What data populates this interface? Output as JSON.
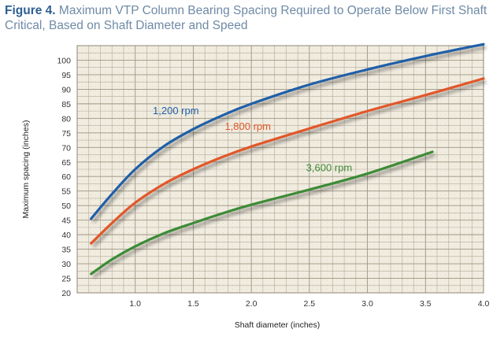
{
  "figure": {
    "label": "Figure 4.",
    "title": "Maximum VTP Column Bearing Spacing Required to Operate Below First Shaft Critical, Based on Shaft Diameter and Speed"
  },
  "chart_data": {
    "type": "line",
    "xlabel": "Shaft diameter (inches)",
    "ylabel": "Maximum spacing (inches)",
    "xlim": [
      0.5,
      4.0
    ],
    "ylim": [
      20,
      105
    ],
    "x_ticks": [
      "1.0",
      "1.5",
      "2.0",
      "2.5",
      "3.0",
      "3.5",
      "4.0"
    ],
    "y_ticks": [
      "20",
      "25",
      "30",
      "35",
      "40",
      "45",
      "50",
      "55",
      "60",
      "65",
      "70",
      "75",
      "80",
      "85",
      "90",
      "95",
      "100"
    ],
    "grid": true,
    "legend": "inline labels",
    "series": [
      {
        "name": "1,200 rpm",
        "color": "#1f5fa8",
        "points": [
          [
            0.62,
            45.5
          ],
          [
            0.8,
            54
          ],
          [
            1.0,
            62.5
          ],
          [
            1.25,
            70.5
          ],
          [
            1.5,
            76.3
          ],
          [
            1.75,
            81
          ],
          [
            2.0,
            85
          ],
          [
            2.5,
            91.6
          ],
          [
            3.0,
            96.8
          ],
          [
            3.5,
            101.4
          ],
          [
            4.0,
            105.5
          ]
        ]
      },
      {
        "name": "1,800 rpm",
        "color": "#e2572a",
        "points": [
          [
            0.62,
            37
          ],
          [
            0.8,
            44
          ],
          [
            1.0,
            51
          ],
          [
            1.25,
            57.5
          ],
          [
            1.5,
            62.5
          ],
          [
            1.75,
            66.7
          ],
          [
            2.0,
            70.3
          ],
          [
            2.5,
            76.5
          ],
          [
            3.0,
            82.5
          ],
          [
            3.5,
            88
          ],
          [
            4.0,
            93.7
          ]
        ]
      },
      {
        "name": "3,600 rpm",
        "color": "#3d8b37",
        "points": [
          [
            0.62,
            26.5
          ],
          [
            0.8,
            31.5
          ],
          [
            1.0,
            36
          ],
          [
            1.25,
            40.5
          ],
          [
            1.5,
            44
          ],
          [
            1.75,
            47.3
          ],
          [
            2.0,
            50.3
          ],
          [
            2.5,
            55.5
          ],
          [
            3.0,
            61
          ],
          [
            3.56,
            68.5
          ]
        ]
      }
    ]
  }
}
